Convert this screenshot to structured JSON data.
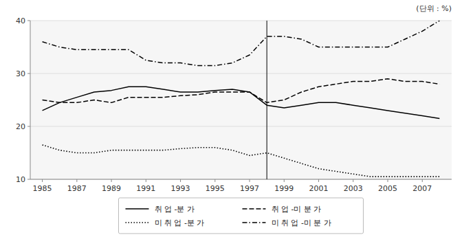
{
  "chart_data": {
    "type": "line",
    "ylabel": "(단위 : %)",
    "x": [
      1985,
      1986,
      1987,
      1988,
      1989,
      1990,
      1991,
      1992,
      1993,
      1994,
      1995,
      1996,
      1997,
      1998,
      1999,
      2000,
      2001,
      2002,
      2003,
      2004,
      2005,
      2006,
      2007,
      2008
    ],
    "series": [
      {
        "name": "취 업 -분 가",
        "color": "#000000",
        "line_style": "solid",
        "values": [
          23.0,
          24.5,
          25.5,
          26.5,
          26.8,
          27.5,
          27.5,
          27.0,
          26.5,
          26.5,
          26.8,
          27.0,
          26.5,
          24.0,
          23.5,
          24.0,
          24.5,
          24.5,
          24.0,
          23.5,
          23.0,
          22.5,
          22.0,
          21.5
        ]
      },
      {
        "name": "취 업 -미 분 가",
        "color": "#000000",
        "line_style": "dashed",
        "values": [
          25.0,
          24.5,
          24.5,
          25.0,
          24.5,
          25.5,
          25.5,
          25.5,
          25.8,
          26.0,
          26.5,
          26.5,
          26.5,
          24.5,
          25.0,
          26.5,
          27.5,
          28.0,
          28.5,
          28.5,
          29.0,
          28.5,
          28.5,
          28.0
        ]
      },
      {
        "name": "미 취 업 -분 가",
        "color": "#000000",
        "line_style": "dotted",
        "values": [
          16.5,
          15.5,
          15.0,
          15.0,
          15.5,
          15.5,
          15.5,
          15.5,
          15.8,
          16.0,
          16.0,
          15.5,
          14.5,
          15.0,
          14.0,
          13.0,
          12.0,
          11.5,
          11.0,
          10.5,
          10.5,
          10.5,
          10.5,
          10.5
        ]
      },
      {
        "name": "미 취 업 -미 분 가",
        "color": "#000000",
        "line_style": "dashdot",
        "values": [
          36.0,
          35.0,
          34.5,
          34.5,
          34.5,
          34.5,
          32.5,
          32.0,
          32.0,
          31.5,
          31.5,
          32.0,
          33.5,
          37.0,
          37.0,
          36.5,
          35.0,
          35.0,
          35.0,
          35.0,
          35.0,
          36.5,
          38.0,
          40.0
        ]
      }
    ],
    "vline_x": 1998,
    "xlim": [
      1984.3,
      2008.7
    ],
    "xticks": [
      1985,
      1987,
      1989,
      1991,
      1993,
      1995,
      1997,
      1999,
      2001,
      2003,
      2005,
      2007
    ],
    "ylim": [
      10,
      40
    ],
    "yticks": [
      10,
      20,
      30,
      40
    ],
    "grid": true,
    "legend": "bottom"
  }
}
